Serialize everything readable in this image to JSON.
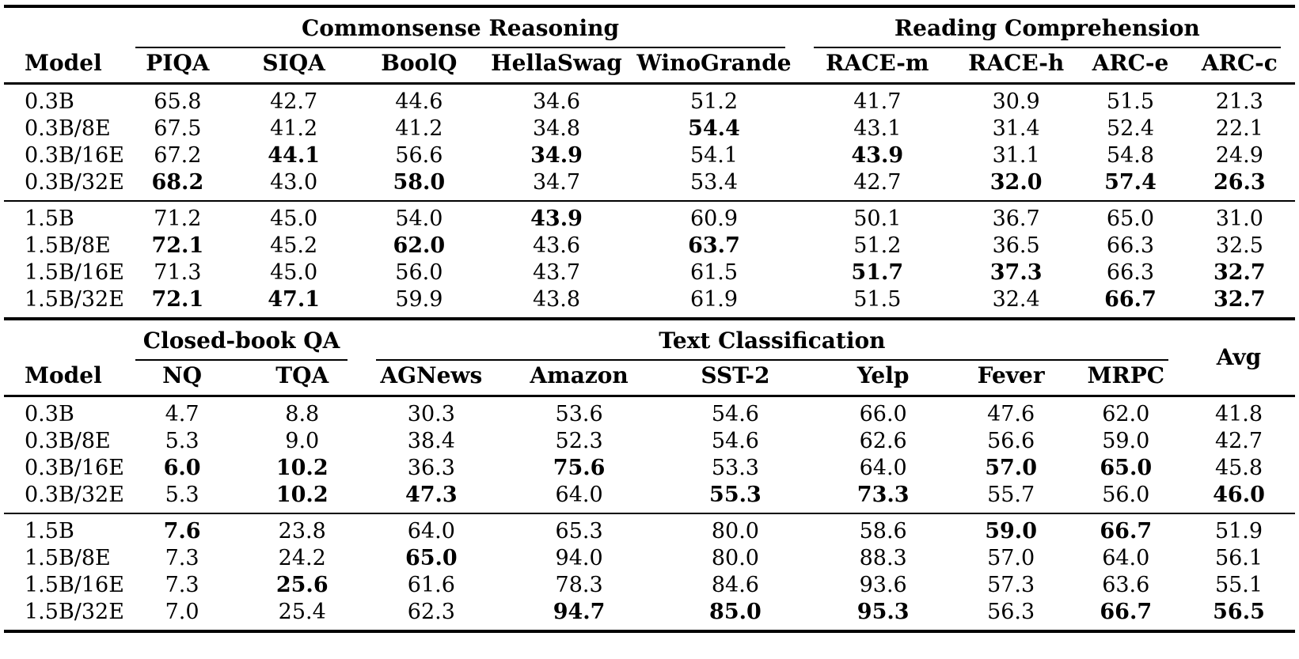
{
  "page": {
    "background": "#ffffff",
    "text_color": "#000000"
  },
  "tables": [
    {
      "name": "benchmarks-part-1",
      "groups": [
        {
          "label": "",
          "span": 1,
          "underline": false
        },
        {
          "label": "Commonsense Reasoning",
          "span": 5,
          "underline": true
        },
        {
          "label": "Reading Comprehension",
          "span": 4,
          "underline": true
        }
      ],
      "columns": [
        "Model",
        "PIQA",
        "SIQA",
        "BoolQ",
        "HellaSwag",
        "WinoGrande",
        "RACE-m",
        "RACE-h",
        "ARC-e",
        "ARC-c"
      ],
      "col_widths_pct": [
        9.1,
        8.7,
        9.3,
        10.1,
        11.2,
        13.2,
        12.1,
        9.4,
        8.3,
        8.6
      ],
      "row_groups": [
        {
          "rows": [
            {
              "model": "0.3B",
              "cells": [
                {
                  "v": "65.8"
                },
                {
                  "v": "42.7"
                },
                {
                  "v": "44.6"
                },
                {
                  "v": "34.6"
                },
                {
                  "v": "51.2"
                },
                {
                  "v": "41.7"
                },
                {
                  "v": "30.9"
                },
                {
                  "v": "51.5"
                },
                {
                  "v": "21.3"
                }
              ]
            },
            {
              "model": "0.3B/8E",
              "cells": [
                {
                  "v": "67.5"
                },
                {
                  "v": "41.2"
                },
                {
                  "v": "41.2"
                },
                {
                  "v": "34.8"
                },
                {
                  "v": "54.4",
                  "b": true
                },
                {
                  "v": "43.1"
                },
                {
                  "v": "31.4"
                },
                {
                  "v": "52.4"
                },
                {
                  "v": "22.1"
                }
              ]
            },
            {
              "model": "0.3B/16E",
              "cells": [
                {
                  "v": "67.2"
                },
                {
                  "v": "44.1",
                  "b": true
                },
                {
                  "v": "56.6"
                },
                {
                  "v": "34.9",
                  "b": true
                },
                {
                  "v": "54.1"
                },
                {
                  "v": "43.9",
                  "b": true
                },
                {
                  "v": "31.1"
                },
                {
                  "v": "54.8"
                },
                {
                  "v": "24.9"
                }
              ]
            },
            {
              "model": "0.3B/32E",
              "cells": [
                {
                  "v": "68.2",
                  "b": true
                },
                {
                  "v": "43.0"
                },
                {
                  "v": "58.0",
                  "b": true
                },
                {
                  "v": "34.7"
                },
                {
                  "v": "53.4"
                },
                {
                  "v": "42.7"
                },
                {
                  "v": "32.0",
                  "b": true
                },
                {
                  "v": "57.4",
                  "b": true
                },
                {
                  "v": "26.3",
                  "b": true
                }
              ]
            }
          ]
        },
        {
          "rows": [
            {
              "model": "1.5B",
              "cells": [
                {
                  "v": "71.2"
                },
                {
                  "v": "45.0"
                },
                {
                  "v": "54.0"
                },
                {
                  "v": "43.9",
                  "b": true
                },
                {
                  "v": "60.9"
                },
                {
                  "v": "50.1"
                },
                {
                  "v": "36.7"
                },
                {
                  "v": "65.0"
                },
                {
                  "v": "31.0"
                }
              ]
            },
            {
              "model": "1.5B/8E",
              "cells": [
                {
                  "v": "72.1",
                  "b": true
                },
                {
                  "v": "45.2"
                },
                {
                  "v": "62.0",
                  "b": true
                },
                {
                  "v": "43.6"
                },
                {
                  "v": "63.7",
                  "b": true
                },
                {
                  "v": "51.2"
                },
                {
                  "v": "36.5"
                },
                {
                  "v": "66.3"
                },
                {
                  "v": "32.5"
                }
              ]
            },
            {
              "model": "1.5B/16E",
              "cells": [
                {
                  "v": "71.3"
                },
                {
                  "v": "45.0"
                },
                {
                  "v": "56.0"
                },
                {
                  "v": "43.7"
                },
                {
                  "v": "61.5"
                },
                {
                  "v": "51.7",
                  "b": true
                },
                {
                  "v": "37.3",
                  "b": true
                },
                {
                  "v": "66.3"
                },
                {
                  "v": "32.7",
                  "b": true
                }
              ]
            },
            {
              "model": "1.5B/32E",
              "cells": [
                {
                  "v": "72.1",
                  "b": true
                },
                {
                  "v": "47.1",
                  "b": true
                },
                {
                  "v": "59.9"
                },
                {
                  "v": "43.8"
                },
                {
                  "v": "61.9"
                },
                {
                  "v": "51.5"
                },
                {
                  "v": "32.4"
                },
                {
                  "v": "66.7",
                  "b": true
                },
                {
                  "v": "32.7",
                  "b": true
                }
              ]
            }
          ]
        }
      ]
    },
    {
      "name": "benchmarks-part-2",
      "groups": [
        {
          "label": "",
          "span": 1,
          "underline": false
        },
        {
          "label": "Closed-book QA",
          "span": 2,
          "underline": true
        },
        {
          "label": "Text Classification",
          "span": 6,
          "underline": true
        },
        {
          "label": "Avg",
          "span": 1,
          "underline": false,
          "rowspan": 2
        }
      ],
      "columns": [
        "Model",
        "NQ",
        "TQA",
        "AGNews",
        "Amazon",
        "SST-2",
        "Yelp",
        "Fever",
        "MRPC"
      ],
      "col_widths_pct": [
        9.1,
        9.4,
        9.2,
        10.8,
        12.1,
        12.1,
        10.8,
        9.0,
        8.8,
        8.7
      ],
      "row_groups": [
        {
          "rows": [
            {
              "model": "0.3B",
              "cells": [
                {
                  "v": "4.7"
                },
                {
                  "v": "8.8"
                },
                {
                  "v": "30.3"
                },
                {
                  "v": "53.6"
                },
                {
                  "v": "54.6"
                },
                {
                  "v": "66.0"
                },
                {
                  "v": "47.6"
                },
                {
                  "v": "62.0"
                },
                {
                  "v": "41.8"
                }
              ]
            },
            {
              "model": "0.3B/8E",
              "cells": [
                {
                  "v": "5.3"
                },
                {
                  "v": "9.0"
                },
                {
                  "v": "38.4"
                },
                {
                  "v": "52.3"
                },
                {
                  "v": "54.6"
                },
                {
                  "v": "62.6"
                },
                {
                  "v": "56.6"
                },
                {
                  "v": "59.0"
                },
                {
                  "v": "42.7"
                }
              ]
            },
            {
              "model": "0.3B/16E",
              "cells": [
                {
                  "v": "6.0",
                  "b": true
                },
                {
                  "v": "10.2",
                  "b": true
                },
                {
                  "v": "36.3"
                },
                {
                  "v": "75.6",
                  "b": true
                },
                {
                  "v": "53.3"
                },
                {
                  "v": "64.0"
                },
                {
                  "v": "57.0",
                  "b": true
                },
                {
                  "v": "65.0",
                  "b": true
                },
                {
                  "v": "45.8"
                }
              ]
            },
            {
              "model": "0.3B/32E",
              "cells": [
                {
                  "v": "5.3"
                },
                {
                  "v": "10.2",
                  "b": true
                },
                {
                  "v": "47.3",
                  "b": true
                },
                {
                  "v": "64.0"
                },
                {
                  "v": "55.3",
                  "b": true
                },
                {
                  "v": "73.3",
                  "b": true
                },
                {
                  "v": "55.7"
                },
                {
                  "v": "56.0"
                },
                {
                  "v": "46.0",
                  "b": true
                }
              ]
            }
          ]
        },
        {
          "rows": [
            {
              "model": "1.5B",
              "cells": [
                {
                  "v": "7.6",
                  "b": true
                },
                {
                  "v": "23.8"
                },
                {
                  "v": "64.0"
                },
                {
                  "v": "65.3"
                },
                {
                  "v": "80.0"
                },
                {
                  "v": "58.6"
                },
                {
                  "v": "59.0",
                  "b": true
                },
                {
                  "v": "66.7",
                  "b": true
                },
                {
                  "v": "51.9"
                }
              ]
            },
            {
              "model": "1.5B/8E",
              "cells": [
                {
                  "v": "7.3"
                },
                {
                  "v": "24.2"
                },
                {
                  "v": "65.0",
                  "b": true
                },
                {
                  "v": "94.0"
                },
                {
                  "v": "80.0"
                },
                {
                  "v": "88.3"
                },
                {
                  "v": "57.0"
                },
                {
                  "v": "64.0"
                },
                {
                  "v": "56.1"
                }
              ]
            },
            {
              "model": "1.5B/16E",
              "cells": [
                {
                  "v": "7.3"
                },
                {
                  "v": "25.6",
                  "b": true
                },
                {
                  "v": "61.6"
                },
                {
                  "v": "78.3"
                },
                {
                  "v": "84.6"
                },
                {
                  "v": "93.6"
                },
                {
                  "v": "57.3"
                },
                {
                  "v": "63.6"
                },
                {
                  "v": "55.1"
                }
              ]
            },
            {
              "model": "1.5B/32E",
              "cells": [
                {
                  "v": "7.0"
                },
                {
                  "v": "25.4"
                },
                {
                  "v": "62.3"
                },
                {
                  "v": "94.7",
                  "b": true
                },
                {
                  "v": "85.0",
                  "b": true
                },
                {
                  "v": "95.3",
                  "b": true
                },
                {
                  "v": "56.3"
                },
                {
                  "v": "66.7",
                  "b": true
                },
                {
                  "v": "56.5",
                  "b": true
                }
              ]
            }
          ]
        }
      ]
    }
  ]
}
